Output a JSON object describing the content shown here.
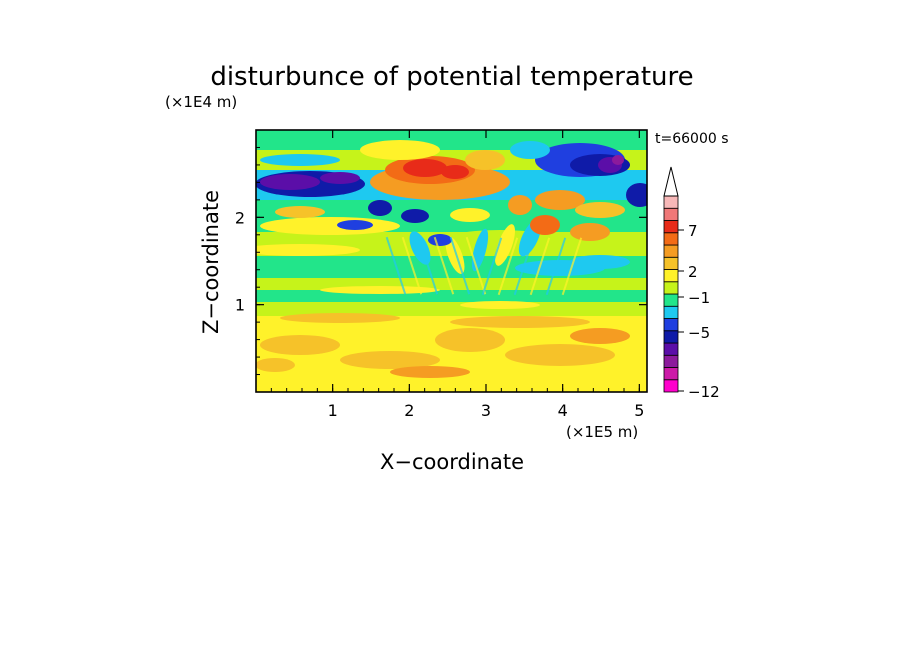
{
  "chart_data": {
    "type": "heatmap",
    "title": "disturbunce of potential temperature",
    "time_label": "t=66000 s",
    "xlabel": "X−coordinate",
    "ylabel": "Z−coordinate",
    "x_scale_label": "(×1E5 m)",
    "y_scale_label": "(×1E4 m)",
    "x_range": [
      0,
      5.1
    ],
    "y_range": [
      0,
      3.0
    ],
    "x_ticks": [
      1,
      2,
      3,
      4,
      5
    ],
    "y_ticks": [
      1,
      2
    ],
    "colorbar": {
      "labeled_levels": [
        "7",
        "2",
        "−1",
        "−5",
        "−12"
      ],
      "extend": "max",
      "colors": [
        "#ff00cc",
        "#cc1aa8",
        "#8c1a9c",
        "#5b0ea8",
        "#0f1ba8",
        "#1f3fe0",
        "#1ec9f0",
        "#22e58a",
        "#c6f31a",
        "#fff22a",
        "#f6c229",
        "#f59c22",
        "#f36b16",
        "#e82b19",
        "#f07878",
        "#f7b8b8"
      ]
    }
  }
}
